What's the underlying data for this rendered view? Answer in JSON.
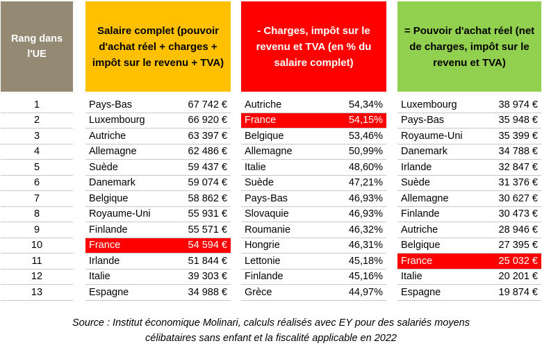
{
  "headers": {
    "rank": "Rang dans l'UE",
    "salary": "Salaire complet (pouvoir d'achat réel + charges + impôt sur le revenu + TVA)",
    "charges": "- Charges, impôt sur le revenu et TVA (en % du salaire complet)",
    "power": "= Pouvoir d'achat réel (net de charges, impôt sur le revenu et TVA)"
  },
  "ranks": [
    "1",
    "2",
    "3",
    "4",
    "5",
    "6",
    "7",
    "8",
    "9",
    "10",
    "11",
    "12",
    "13"
  ],
  "salary": [
    {
      "country": "Pays-Bas",
      "value": "67 742 €"
    },
    {
      "country": "Luxembourg",
      "value": "66 920 €"
    },
    {
      "country": "Autriche",
      "value": "63 397 €"
    },
    {
      "country": "Allemagne",
      "value": "62 486 €"
    },
    {
      "country": "Suède",
      "value": "59 437 €"
    },
    {
      "country": "Danemark",
      "value": "59 074 €"
    },
    {
      "country": "Belgique",
      "value": "58 862 €"
    },
    {
      "country": "Royaume-Uni",
      "value": "55 931 €"
    },
    {
      "country": "Finlande",
      "value": "55 571 €"
    },
    {
      "country": "France",
      "value": "54 594 €",
      "highlight": true
    },
    {
      "country": "Irlande",
      "value": "51 844 €"
    },
    {
      "country": "Italie",
      "value": "39 303 €"
    },
    {
      "country": "Espagne",
      "value": "34 988 €"
    }
  ],
  "charges": [
    {
      "country": "Autriche",
      "value": "54,34%"
    },
    {
      "country": "France",
      "value": "54,15%",
      "highlight": true
    },
    {
      "country": "Belgique",
      "value": "53,46%"
    },
    {
      "country": "Allemagne",
      "value": "50,99%"
    },
    {
      "country": "Italie",
      "value": "48,60%"
    },
    {
      "country": "Suède",
      "value": "47,21%"
    },
    {
      "country": "Pays-Bas",
      "value": "46,93%"
    },
    {
      "country": "Slovaquie",
      "value": "46,93%"
    },
    {
      "country": "Roumanie",
      "value": "46,32%"
    },
    {
      "country": "Hongrie",
      "value": "46,31%"
    },
    {
      "country": "Lettonie",
      "value": "45,18%"
    },
    {
      "country": "Finlande",
      "value": "45,16%"
    },
    {
      "country": "Grèce",
      "value": "44,97%"
    }
  ],
  "power": [
    {
      "country": "Luxembourg",
      "value": "38 974 €"
    },
    {
      "country": "Pays-Bas",
      "value": "35 948 €"
    },
    {
      "country": "Royaume-Uni",
      "value": "35 399 €"
    },
    {
      "country": "Danemark",
      "value": "34 788 €"
    },
    {
      "country": "Irlande",
      "value": "32 847 €"
    },
    {
      "country": "Suède",
      "value": "31 376 €"
    },
    {
      "country": "Allemagne",
      "value": "30 627 €"
    },
    {
      "country": "Finlande",
      "value": "30 473 €"
    },
    {
      "country": "Autriche",
      "value": "28 946 €"
    },
    {
      "country": "Belgique",
      "value": "27 395 €"
    },
    {
      "country": "France",
      "value": "25 032 €",
      "highlight": true
    },
    {
      "country": "Italie",
      "value": "20 201 €"
    },
    {
      "country": "Espagne",
      "value": "19 874 €"
    }
  ],
  "source_line1": "Source : Institut économique Molinari, calculs réalisés avec EY pour des salariés moyens",
  "source_line2": "célibataires sans enfant et la fiscalité applicable en 2022",
  "colors": {
    "rank_header": "#948a74",
    "salary_header": "#ffc000",
    "charges_header": "#ff0000",
    "power_header": "#92d050",
    "highlight": "#ff0000"
  }
}
